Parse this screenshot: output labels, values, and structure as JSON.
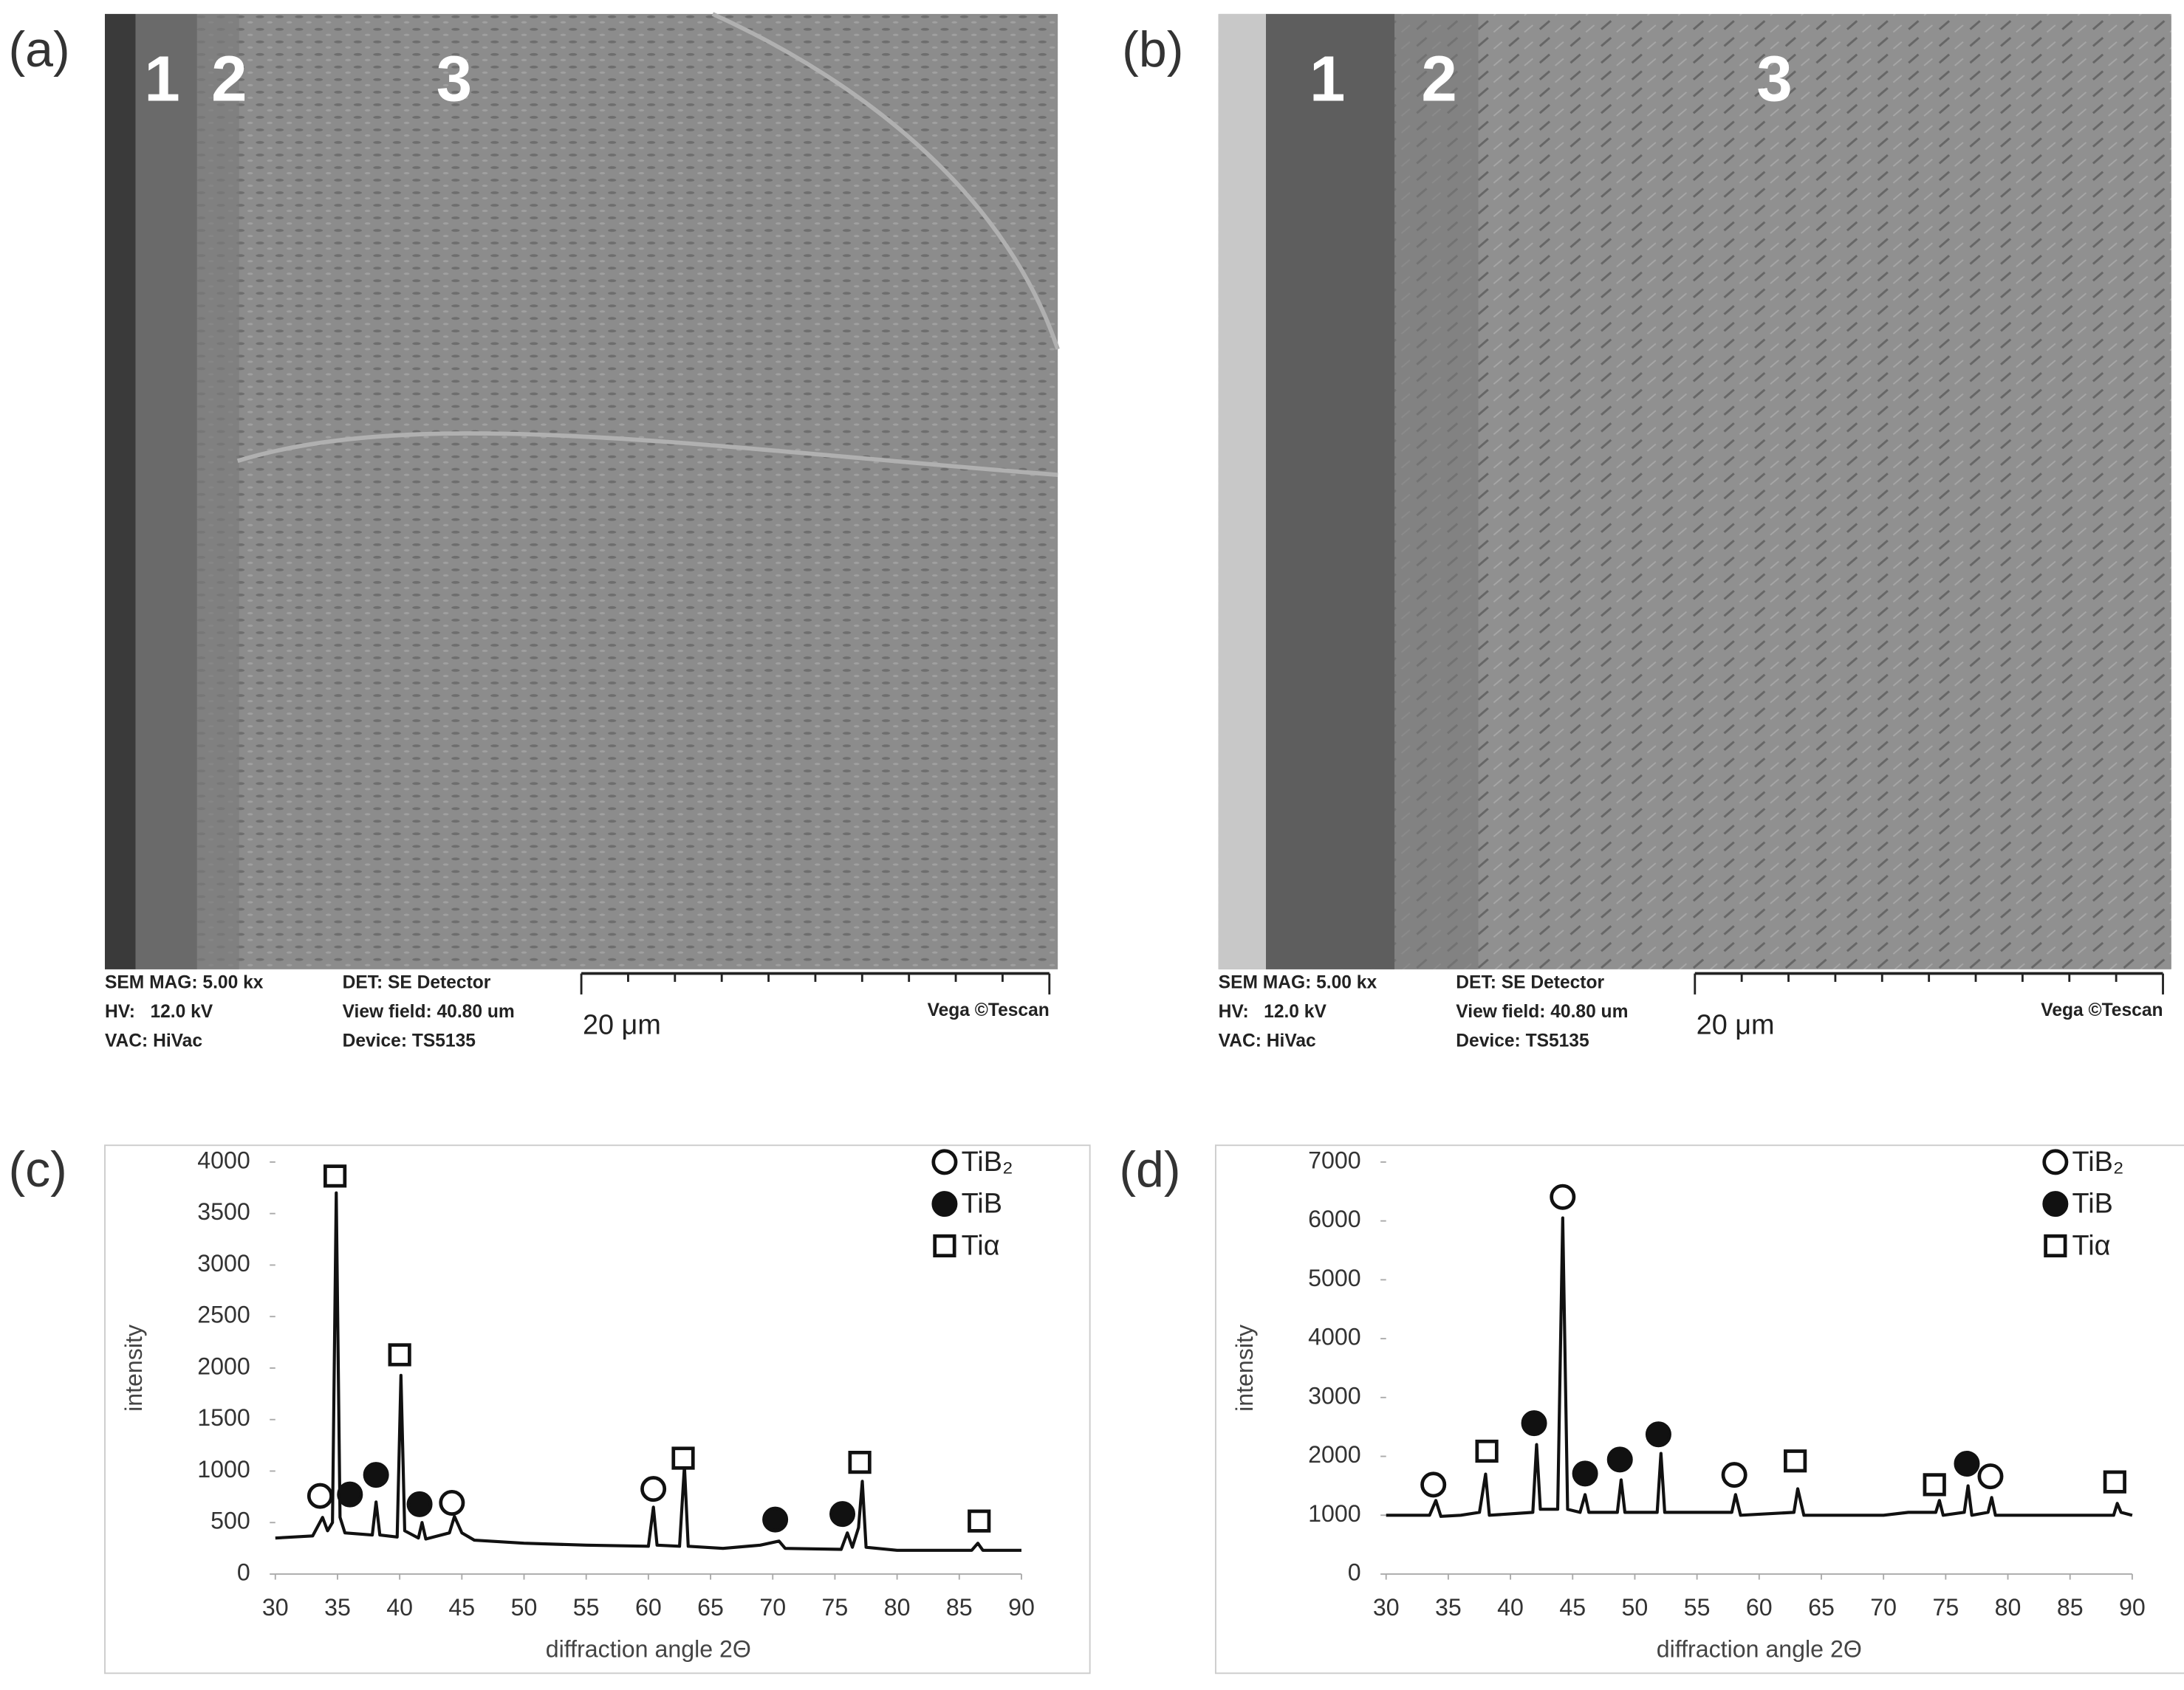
{
  "sem_images": [
    {
      "panel_label": "(a)",
      "zones": [
        "1",
        "2",
        "3"
      ],
      "info": [
        "SEM MAG: 5.00 kx",
        "HV:   12.0 kV",
        "VAC: HiVac",
        "DET: SE Detector",
        "View field: 40.80 um",
        "Device: TS5135"
      ],
      "scale_bar": "20 μm",
      "brand": "Vega ©Tescan"
    },
    {
      "panel_label": "(b)",
      "zones": [
        "1",
        "2",
        "3"
      ],
      "info": [
        "SEM MAG: 5.00 kx",
        "HV:   12.0 kV",
        "VAC: HiVac",
        "DET: SE Detector",
        "View field: 40.80 um",
        "Device: TS5135"
      ],
      "scale_bar": "20 μm",
      "brand": "Vega ©Tescan"
    }
  ],
  "chart_data": [
    {
      "type": "line",
      "panel_label": "(c)",
      "xlabel": "diffraction angle 2Θ",
      "ylabel": "intensity",
      "color": "#111111",
      "x": [
        30,
        33,
        33.8,
        34.2,
        34.6,
        34.9,
        35.2,
        35.6,
        37.8,
        38.1,
        38.4,
        39.8,
        40.1,
        40.4,
        41.5,
        41.8,
        42.1,
        44,
        44.4,
        45,
        46,
        50,
        55,
        60,
        60.4,
        60.7,
        62.5,
        62.9,
        63.2,
        66,
        69,
        70.5,
        71,
        75.5,
        76,
        76.4,
        76.9,
        77.2,
        77.5,
        80,
        86,
        86.5,
        86.9,
        90
      ],
      "values": [
        350,
        370,
        550,
        420,
        500,
        3700,
        550,
        400,
        380,
        700,
        380,
        360,
        1930,
        420,
        350,
        500,
        340,
        400,
        560,
        400,
        330,
        300,
        280,
        270,
        650,
        280,
        270,
        1050,
        270,
        250,
        280,
        320,
        250,
        240,
        400,
        260,
        450,
        900,
        260,
        230,
        230,
        300,
        230,
        230
      ],
      "xlim": [
        30,
        90
      ],
      "xticks": [
        30,
        35,
        40,
        45,
        50,
        55,
        60,
        65,
        70,
        75,
        80,
        85,
        90
      ],
      "ylim": [
        0,
        4000
      ],
      "yticks": [
        0,
        500,
        1000,
        1500,
        2000,
        2500,
        3000,
        3500,
        4000
      ],
      "markers": [
        {
          "name": "TiB₂",
          "symbol": "circle",
          "x": [
            33.6,
            44.2,
            60.4
          ],
          "values": [
            759,
            692,
            827
          ]
        },
        {
          "name": "TiB",
          "symbol": "dot",
          "x": [
            36.0,
            38.1,
            41.6,
            70.2,
            75.6
          ],
          "values": [
            773,
            963,
            678,
            529,
            583
          ]
        },
        {
          "name": "Tiα",
          "symbol": "square",
          "x": [
            34.8,
            40.0,
            62.8,
            77.0,
            86.6
          ],
          "values": [
            3864,
            2129,
            1125,
            1085,
            515
          ]
        }
      ]
    },
    {
      "type": "line",
      "panel_label": "(d)",
      "xlabel": "diffraction angle 2Θ",
      "ylabel": "intensity",
      "color": "#111111",
      "x": [
        30,
        33.5,
        34,
        34.4,
        36,
        37.5,
        38,
        38.3,
        41.8,
        42.1,
        42.4,
        43.8,
        44.2,
        44.6,
        45.6,
        46,
        46.3,
        48.6,
        48.9,
        49.2,
        51.8,
        52.1,
        52.4,
        57.8,
        58.1,
        58.5,
        62.8,
        63.1,
        63.6,
        70,
        72,
        74.2,
        74.5,
        74.8,
        76.5,
        76.8,
        77.1,
        78.4,
        78.7,
        79,
        88.5,
        88.8,
        89.1,
        90
      ],
      "values": [
        1000,
        1000,
        1250,
        980,
        1000,
        1050,
        1700,
        1000,
        1050,
        2200,
        1100,
        1100,
        6050,
        1100,
        1050,
        1350,
        1050,
        1050,
        1600,
        1050,
        1050,
        2050,
        1050,
        1050,
        1350,
        1000,
        1050,
        1450,
        1000,
        1000,
        1050,
        1050,
        1250,
        1000,
        1050,
        1500,
        1000,
        1050,
        1300,
        1000,
        1000,
        1200,
        1050,
        1000
      ],
      "xlim": [
        30,
        90
      ],
      "xticks": [
        30,
        35,
        40,
        45,
        50,
        55,
        60,
        65,
        70,
        75,
        80,
        85,
        90
      ],
      "ylim": [
        0,
        7000
      ],
      "yticks": [
        0,
        1000,
        2000,
        3000,
        4000,
        5000,
        6000,
        7000
      ],
      "markers": [
        {
          "name": "TiB₂",
          "symbol": "circle",
          "x": [
            33.8,
            44.2,
            58.0,
            78.6
          ],
          "values": [
            1519,
            6407,
            1685,
            1661
          ]
        },
        {
          "name": "TiB",
          "symbol": "dot",
          "x": [
            41.9,
            46.0,
            48.8,
            51.9,
            76.7
          ],
          "values": [
            2563,
            1708,
            1946,
            2373,
            1875
          ]
        },
        {
          "name": "Tiα",
          "symbol": "square",
          "x": [
            38.1,
            62.9,
            74.1,
            88.6
          ],
          "values": [
            2088,
            1922,
            1519,
            1566
          ]
        }
      ]
    }
  ]
}
